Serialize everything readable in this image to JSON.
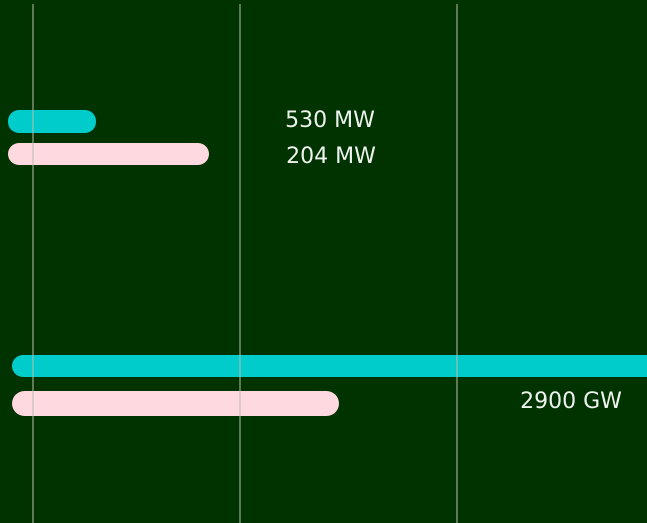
{
  "labels": [
    "530 MW",
    "204 MW",
    "2900 GW"
  ]
}
